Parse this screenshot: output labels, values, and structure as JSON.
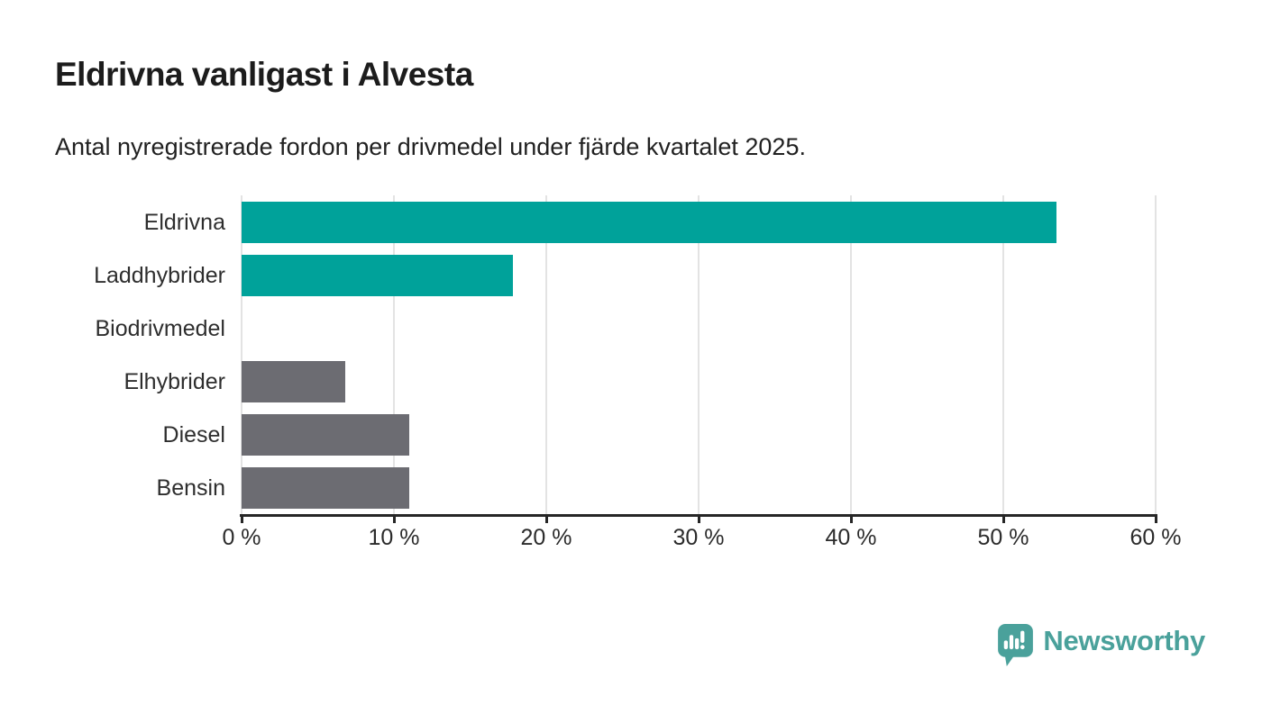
{
  "header": {
    "title": "Eldrivna vanligast i Alvesta",
    "subtitle": "Antal nyregistrerade fordon per drivmedel under fjärde kvartalet 2025."
  },
  "chart_data": {
    "type": "bar",
    "orientation": "horizontal",
    "title": "Eldrivna vanligast i Alvesta",
    "subtitle": "Antal nyregistrerade fordon per drivmedel under fjärde kvartalet 2025.",
    "categories": [
      "Eldrivna",
      "Laddhybrider",
      "Biodrivmedel",
      "Elhybrider",
      "Diesel",
      "Bensin"
    ],
    "values": [
      53.5,
      17.8,
      0,
      6.8,
      11,
      11
    ],
    "unit": "%",
    "bar_colors": [
      "#00a29a",
      "#00a29a",
      "#6c6c72",
      "#6c6c72",
      "#6c6c72",
      "#6c6c72"
    ],
    "xlim": [
      0,
      60
    ],
    "x_ticks": [
      0,
      10,
      20,
      30,
      40,
      50,
      60
    ],
    "x_tick_labels": [
      "0 %",
      "10 %",
      "20 %",
      "30 %",
      "40 %",
      "50 %",
      "60 %"
    ],
    "grid": true,
    "grid_axis": "x",
    "legend": "none"
  },
  "branding": {
    "logo_text": "Newsworthy",
    "logo_color": "#4aa19b",
    "icon_name": "newsworthy-speech-bubble-barchart-icon"
  },
  "colors": {
    "accent_teal": "#00a29a",
    "neutral_gray": "#6c6c72",
    "axis": "#262626",
    "gridline": "#e3e3e3",
    "text": "#2e2e2e",
    "background": "#ffffff"
  }
}
